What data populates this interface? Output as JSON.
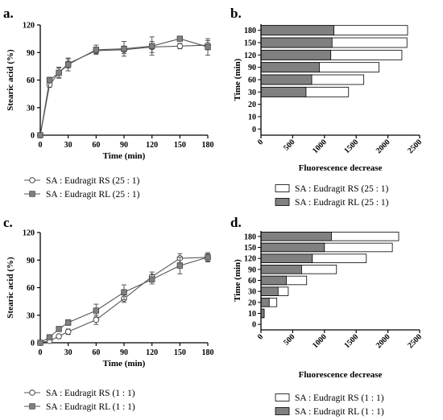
{
  "panels": [
    {
      "id": "a",
      "label": "a."
    },
    {
      "id": "b",
      "label": "b."
    },
    {
      "id": "c",
      "label": "c."
    },
    {
      "id": "d",
      "label": "d."
    }
  ],
  "colors": {
    "axis": "#000000",
    "white_fill": "#ffffff",
    "rs_fill": "#ffffff",
    "rl_fill": "#808080",
    "marker_stroke": "#444444"
  },
  "chart_data": [
    {
      "panel": "a",
      "type": "line",
      "xlabel": "Time (min)",
      "ylabel": "Stearic acid (%)",
      "xlim": [
        0,
        180
      ],
      "ylim": [
        0,
        120
      ],
      "xticks": [
        0,
        30,
        60,
        90,
        120,
        150,
        180
      ],
      "yticks": [
        0,
        30,
        60,
        90,
        120
      ],
      "series": [
        {
          "name": "SA : Eudragit RS (25 : 1)",
          "marker": "circle-open",
          "x": [
            0,
            10,
            20,
            30,
            60,
            90,
            120,
            150,
            180
          ],
          "y": [
            0,
            55,
            68,
            78,
            92,
            93,
            96,
            97,
            98
          ],
          "err": [
            0,
            3,
            5,
            5,
            3,
            4,
            6,
            3,
            5
          ]
        },
        {
          "name": "SA : Eudragit RL (25 : 1)",
          "marker": "square-gray",
          "x": [
            0,
            10,
            20,
            30,
            60,
            90,
            120,
            150,
            180
          ],
          "y": [
            0,
            60,
            68,
            77,
            93,
            94,
            97,
            105,
            96
          ],
          "err": [
            0,
            3,
            6,
            7,
            5,
            8,
            10,
            2,
            9
          ]
        }
      ],
      "legend_position": "bottom"
    },
    {
      "panel": "b",
      "type": "bar",
      "orientation": "horizontal",
      "stacked": false,
      "xlabel": "Fluorescence decrease",
      "ylabel": "Time (min)",
      "categories": [
        "0",
        "10",
        "20",
        "30",
        "60",
        "90",
        "120",
        "150",
        "180"
      ],
      "xlim": [
        0,
        2500
      ],
      "xticks": [
        0,
        500,
        1000,
        1500,
        2000,
        2500
      ],
      "series": [
        {
          "name": "SA : Eudragit RS (25 : 1)",
          "fill": "white",
          "values": [
            0,
            0,
            0,
            1380,
            1620,
            1860,
            2220,
            2300,
            2310
          ]
        },
        {
          "name": "SA : Eudragit RL (25 : 1)",
          "fill": "gray",
          "values": [
            0,
            0,
            0,
            710,
            800,
            920,
            1100,
            1120,
            1150
          ]
        }
      ],
      "legend_position": "bottom"
    },
    {
      "panel": "c",
      "type": "line",
      "xlabel": "Time (min)",
      "ylabel": "Stearic acid (%)",
      "xlim": [
        0,
        180
      ],
      "ylim": [
        0,
        120
      ],
      "xticks": [
        0,
        30,
        60,
        90,
        120,
        150,
        180
      ],
      "yticks": [
        0,
        30,
        60,
        90,
        120
      ],
      "series": [
        {
          "name": "SA : Eudragit RS (1 : 1)",
          "marker": "circle-open",
          "x": [
            0,
            10,
            20,
            30,
            60,
            90,
            120,
            150,
            180
          ],
          "y": [
            0,
            2,
            7,
            12,
            25,
            48,
            72,
            92,
            93
          ],
          "err": [
            0,
            2,
            2,
            3,
            5,
            4,
            5,
            5,
            5
          ]
        },
        {
          "name": "SA : Eudragit RL (1 : 1)",
          "marker": "square-gray",
          "x": [
            0,
            10,
            20,
            30,
            60,
            90,
            120,
            150,
            180
          ],
          "y": [
            0,
            6,
            15,
            22,
            35,
            55,
            69,
            84,
            93
          ],
          "err": [
            0,
            2,
            2,
            3,
            7,
            8,
            5,
            9,
            4
          ]
        }
      ],
      "legend_position": "bottom"
    },
    {
      "panel": "d",
      "type": "bar",
      "orientation": "horizontal",
      "stacked": false,
      "xlabel": "Fluorescence decrease",
      "ylabel": "Time (min)",
      "categories": [
        "0",
        "10",
        "20",
        "30",
        "60",
        "90",
        "120",
        "150",
        "180"
      ],
      "xlim": [
        0,
        2500
      ],
      "xticks": [
        0,
        500,
        1000,
        1500,
        2000,
        2500
      ],
      "series": [
        {
          "name": "SA : Eudragit RS (1 : 1)",
          "fill": "white",
          "values": [
            0,
            50,
            250,
            430,
            720,
            1190,
            1660,
            2070,
            2170
          ]
        },
        {
          "name": "SA : Eudragit RL (1 : 1)",
          "fill": "gray",
          "values": [
            0,
            50,
            130,
            270,
            400,
            640,
            810,
            1000,
            1110
          ]
        }
      ],
      "legend_position": "bottom"
    }
  ]
}
